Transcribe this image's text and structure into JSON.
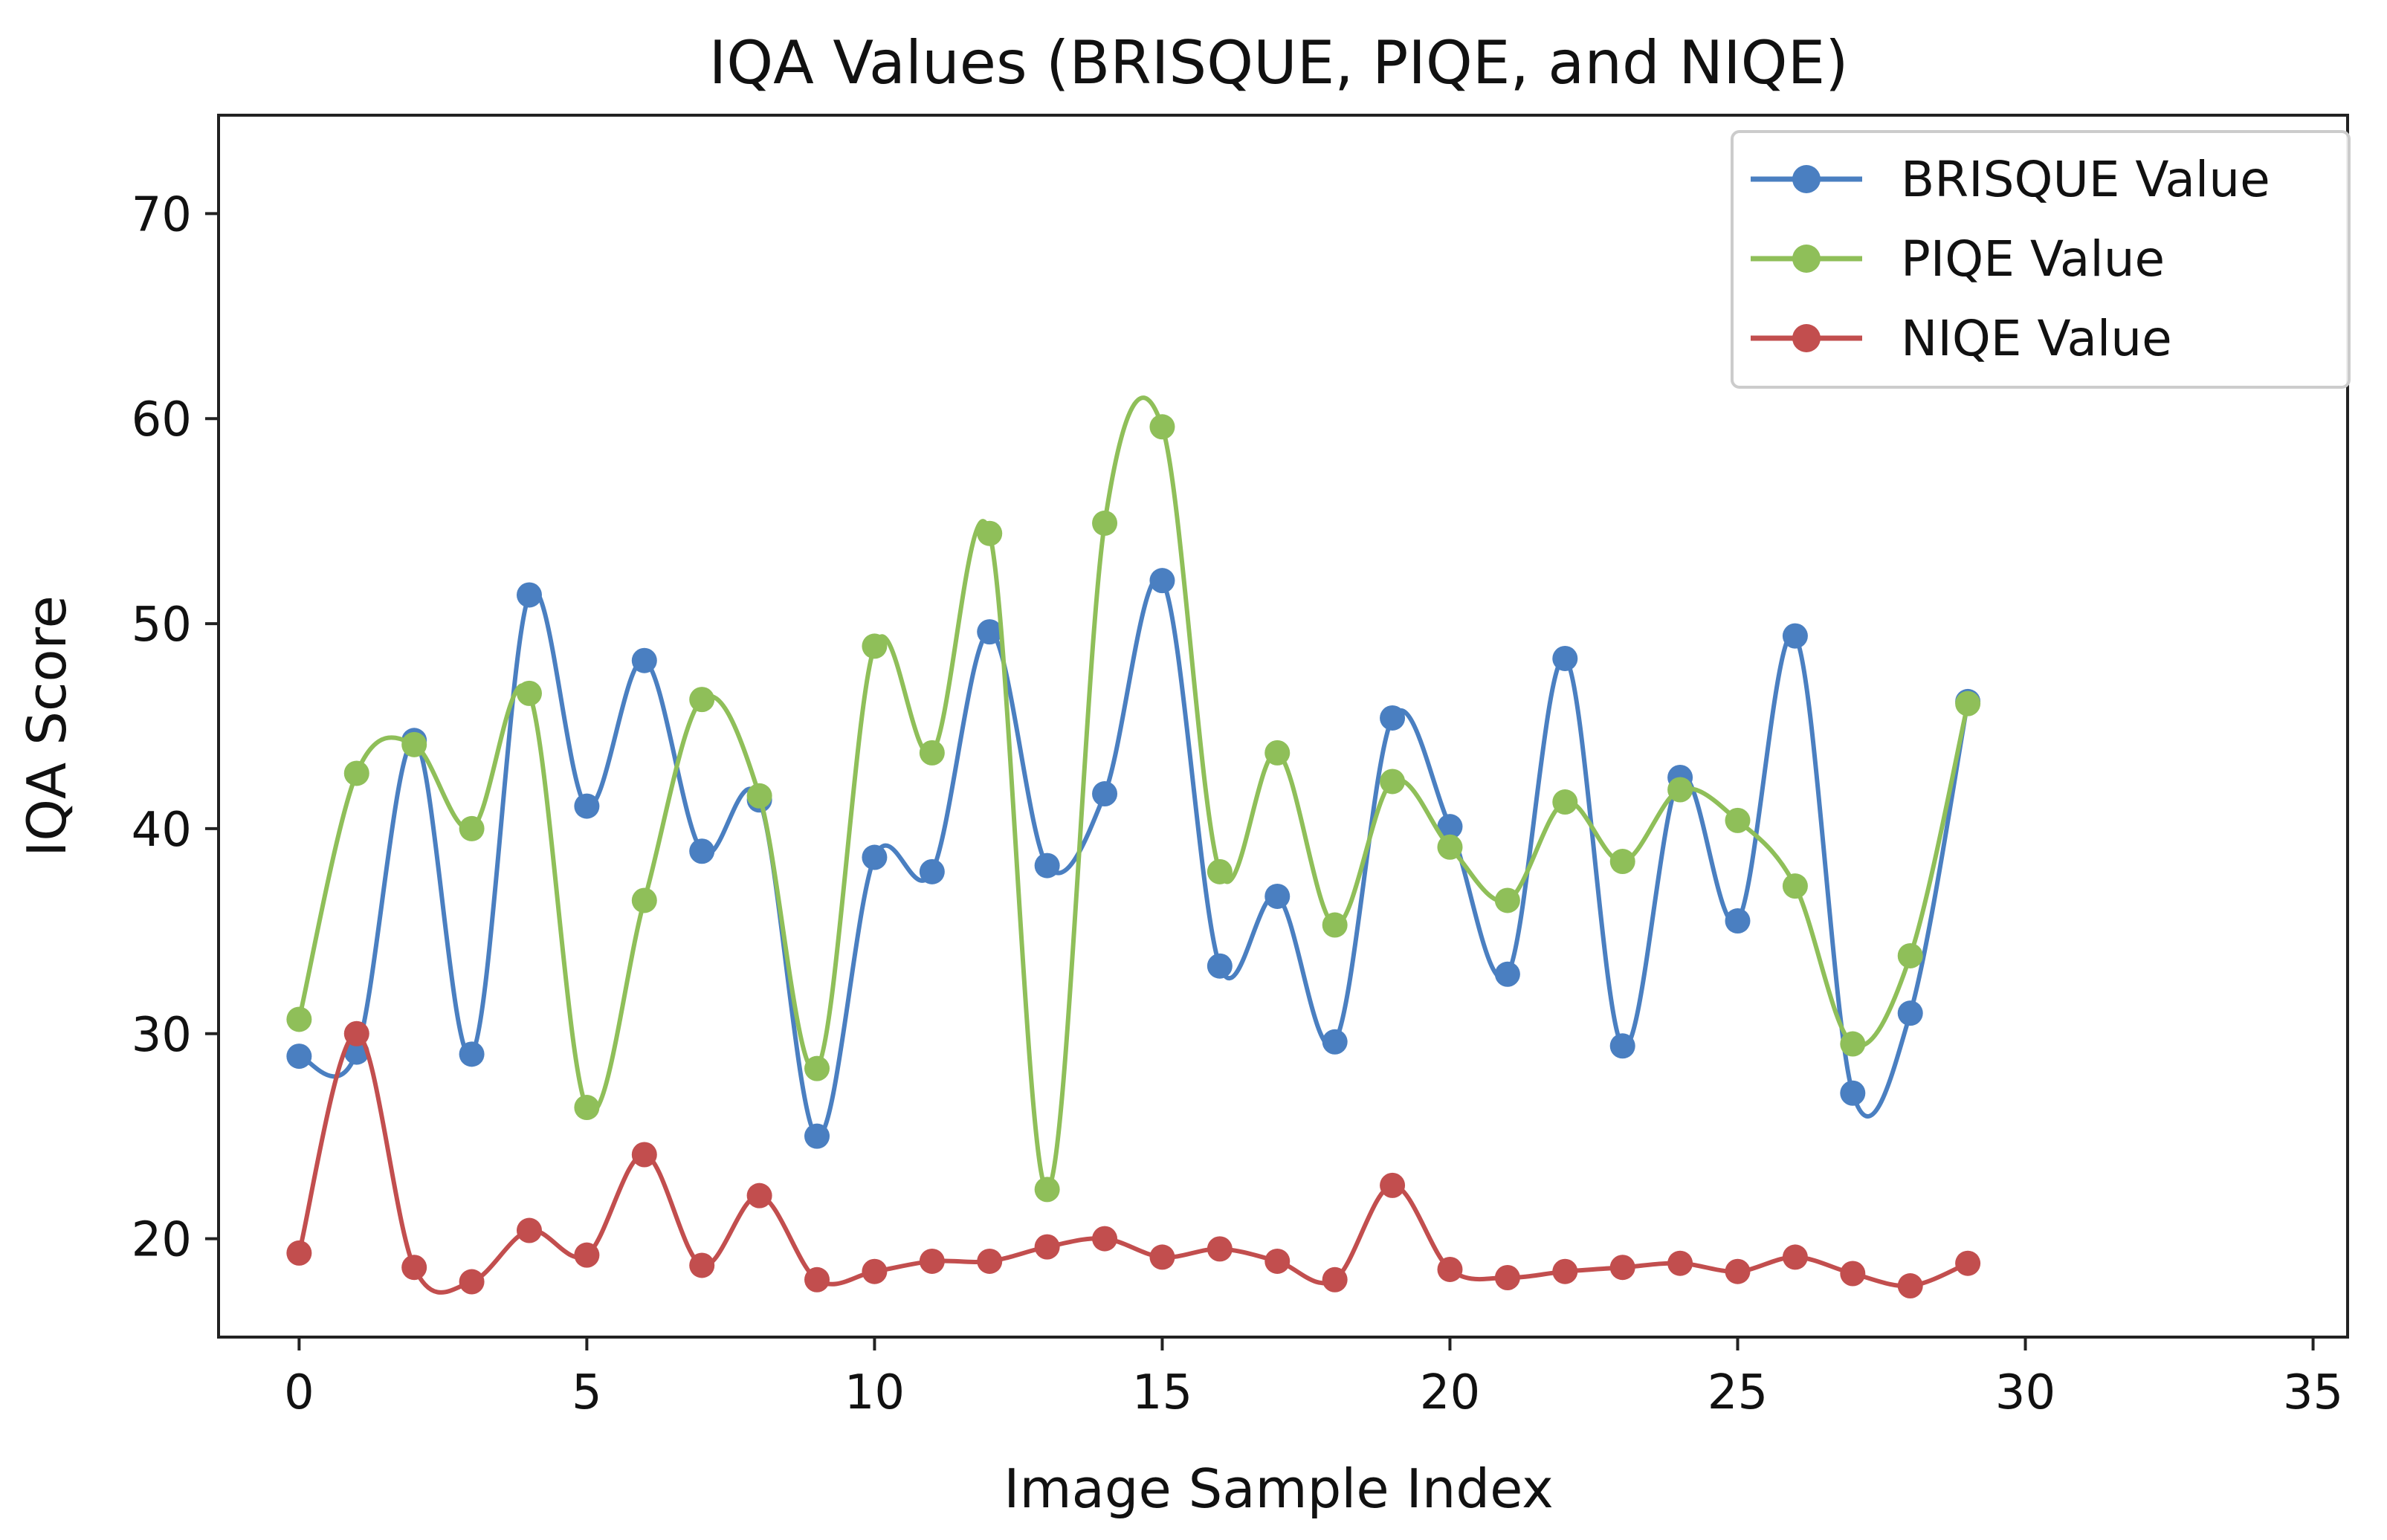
{
  "chart_data": {
    "type": "line",
    "title": "IQA Values (BRISQUE, PIQE, and NIQE)",
    "xlabel": "Image Sample Index",
    "ylabel": "IQA Score",
    "xlim": [
      -1.4,
      35.6
    ],
    "ylim": [
      15.2,
      74.8
    ],
    "xticks": [
      0,
      5,
      10,
      15,
      20,
      25,
      30,
      35
    ],
    "yticks": [
      20,
      30,
      40,
      50,
      60,
      70
    ],
    "grid": false,
    "legend_position": "top-right",
    "x": [
      0,
      1,
      2,
      3,
      4,
      5,
      6,
      7,
      8,
      9,
      10,
      11,
      12,
      13,
      14,
      15,
      16,
      17,
      18,
      19,
      20,
      21,
      22,
      23,
      24,
      25,
      26,
      27,
      28,
      29,
      30
    ],
    "series": [
      {
        "name": "BRISQUE Value",
        "color": "#4a7fc1",
        "values": [
          28.9,
          29.1,
          44.3,
          29.0,
          51.4,
          41.1,
          48.2,
          38.9,
          41.4,
          25.0,
          38.6,
          37.9,
          49.6,
          38.2,
          41.7,
          52.1,
          33.3,
          36.7,
          29.6,
          45.4,
          40.1,
          32.9,
          48.3,
          29.4,
          42.5,
          35.5,
          49.4,
          27.1,
          31.0,
          46.2,
          null
        ]
      },
      {
        "name": "PIQE Value",
        "color": "#8fbf59",
        "values": [
          30.7,
          42.7,
          44.1,
          40.0,
          46.6,
          26.4,
          36.5,
          46.3,
          41.6,
          28.3,
          48.9,
          43.7,
          54.4,
          22.4,
          54.9,
          59.6,
          37.9,
          43.7,
          35.3,
          42.3,
          39.1,
          36.5,
          41.3,
          38.4,
          41.9,
          40.4,
          37.2,
          29.5,
          33.8,
          46.1,
          null
        ]
      },
      {
        "name": "NIQE Value",
        "color": "#c24e4e",
        "values": [
          19.3,
          30.0,
          18.6,
          17.9,
          20.4,
          19.2,
          24.1,
          18.7,
          22.1,
          18.0,
          18.4,
          18.9,
          18.9,
          19.6,
          20.0,
          19.1,
          19.5,
          18.9,
          18.0,
          22.6,
          18.5,
          18.1,
          18.4,
          18.6,
          18.8,
          18.4,
          19.1,
          18.3,
          17.7,
          18.8,
          null
        ]
      }
    ]
  }
}
